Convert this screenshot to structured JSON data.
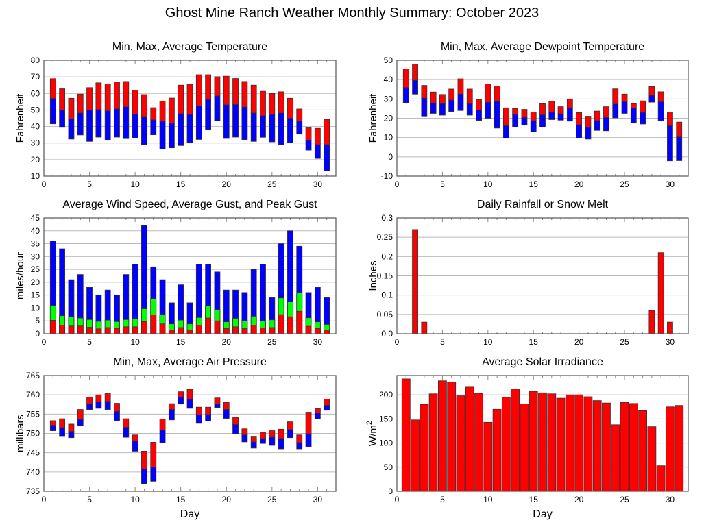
{
  "title": "Ghost Mine Ranch Weather Monthly Summary: October 2023",
  "colors": {
    "red": "#ff0000",
    "blue": "#0000ff",
    "green": "#00ff00",
    "grid": "#bbbbbb",
    "frame": "#555555"
  },
  "chart_data": [
    {
      "id": "temperature",
      "type": "bar",
      "title": "Min, Max, Average Temperature",
      "xlabel": "",
      "ylabel": "Fahrenheit",
      "xlim": [
        0,
        32
      ],
      "ylim": [
        10,
        80
      ],
      "xticks": [
        0,
        5,
        10,
        15,
        20,
        25,
        30
      ],
      "yticks": [
        10,
        20,
        30,
        40,
        50,
        60,
        70,
        80
      ],
      "grid": true,
      "x": [
        1,
        2,
        3,
        4,
        5,
        6,
        7,
        8,
        9,
        10,
        11,
        12,
        13,
        14,
        15,
        16,
        17,
        18,
        19,
        20,
        21,
        22,
        23,
        24,
        25,
        26,
        27,
        28,
        29,
        30,
        31
      ],
      "series": [
        {
          "name": "Max",
          "color": "red",
          "values": [
            68.9,
            62.8,
            57.1,
            59.6,
            63.5,
            66.4,
            65.7,
            66.8,
            67.2,
            62.0,
            59.3,
            51.4,
            55.4,
            57.2,
            65.0,
            65.5,
            71.3,
            71.3,
            70.1,
            70.4,
            69.0,
            67.2,
            65.0,
            61.3,
            60.0,
            61.0,
            57.1,
            50.6,
            39.2,
            38.9,
            44.3
          ]
        },
        {
          "name": "Average",
          "color": "split",
          "values": [
            56.9,
            49.8,
            44.6,
            48.1,
            49.8,
            50.2,
            49.4,
            50.6,
            51.9,
            47.4,
            45.6,
            44.0,
            43.1,
            41.9,
            47.7,
            47.2,
            52.4,
            56.3,
            58.5,
            53.1,
            53.3,
            51.8,
            48.1,
            46.5,
            47.2,
            48.1,
            45.0,
            43.3,
            31.6,
            29.0,
            29.0
          ]
        },
        {
          "name": "Min",
          "color": "blue",
          "values": [
            41.6,
            39.5,
            32.4,
            34.9,
            31.0,
            33.6,
            31.8,
            33.6,
            32.7,
            33.1,
            29.0,
            35.0,
            26.5,
            27.1,
            28.5,
            30.3,
            32.2,
            38.2,
            43.3,
            32.8,
            33.6,
            32.1,
            31.0,
            33.5,
            30.7,
            29.0,
            30.3,
            35.4,
            25.7,
            20.7,
            13.2
          ]
        }
      ]
    },
    {
      "id": "dewpoint",
      "type": "bar",
      "title": "Min, Max, Average Dewpoint Temperature",
      "xlabel": "",
      "ylabel": "Fahrenheit",
      "xlim": [
        0,
        32
      ],
      "ylim": [
        -10,
        50
      ],
      "xticks": [
        0,
        5,
        10,
        15,
        20,
        25,
        30
      ],
      "yticks": [
        -10,
        0,
        10,
        20,
        30,
        40,
        50
      ],
      "grid": true,
      "x": [
        1,
        2,
        3,
        4,
        5,
        6,
        7,
        8,
        9,
        10,
        11,
        12,
        13,
        14,
        15,
        16,
        17,
        18,
        19,
        20,
        21,
        22,
        23,
        24,
        25,
        26,
        27,
        28,
        29,
        30,
        31
      ],
      "series": [
        {
          "name": "Max",
          "color": "red",
          "values": [
            45.5,
            48.0,
            37.0,
            33.6,
            32.3,
            35.1,
            40.4,
            35.1,
            29.6,
            37.7,
            36.7,
            25.4,
            25.0,
            24.6,
            23.2,
            27.5,
            28.8,
            26.0,
            30.0,
            22.9,
            20.7,
            23.7,
            26.0,
            35.2,
            32.5,
            27.5,
            29.0,
            36.4,
            33.7,
            23.2,
            18.0
          ]
        },
        {
          "name": "Average",
          "color": "split",
          "values": [
            35.9,
            39.6,
            30.4,
            27.9,
            27.5,
            29.4,
            32.5,
            27.5,
            24.3,
            28.2,
            28.7,
            16.1,
            21.9,
            20.4,
            18.7,
            21.7,
            23.2,
            22.3,
            25.4,
            16.6,
            15.4,
            18.8,
            20.4,
            27.3,
            28.5,
            25.2,
            22.9,
            31.8,
            28.5,
            16.1,
            10.3
          ]
        },
        {
          "name": "Min",
          "color": "blue",
          "values": [
            28.0,
            32.5,
            20.8,
            22.5,
            21.6,
            23.5,
            24.0,
            21.6,
            18.9,
            20.0,
            14.9,
            9.7,
            15.5,
            16.4,
            12.9,
            15.4,
            19.3,
            19.0,
            18.5,
            9.8,
            9.2,
            13.7,
            13.5,
            20.2,
            22.5,
            17.6,
            17.0,
            28.3,
            18.7,
            -2.1,
            -2.0
          ]
        }
      ]
    },
    {
      "id": "wind",
      "type": "bar",
      "title": "Average Wind Speed, Average Gust, and Peak Gust",
      "xlabel": "",
      "ylabel": "miles/hour",
      "xlim": [
        0,
        32
      ],
      "ylim": [
        0,
        45
      ],
      "xticks": [
        0,
        5,
        10,
        15,
        20,
        25,
        30
      ],
      "yticks": [
        0,
        5,
        10,
        15,
        20,
        25,
        30,
        35,
        40,
        45
      ],
      "grid": true,
      "x": [
        1,
        2,
        3,
        4,
        5,
        6,
        7,
        8,
        9,
        10,
        11,
        12,
        13,
        14,
        15,
        16,
        17,
        18,
        19,
        20,
        21,
        22,
        23,
        24,
        25,
        26,
        27,
        28,
        29,
        30,
        31
      ],
      "series": [
        {
          "name": "Peak Gust",
          "color": "blue",
          "values": [
            36,
            33,
            21,
            23,
            18,
            15,
            17,
            15,
            23,
            27,
            42,
            26,
            21,
            12,
            19,
            12,
            27,
            27,
            24,
            17,
            17,
            16,
            25,
            27,
            14,
            35,
            40,
            34,
            16,
            18,
            14
          ]
        },
        {
          "name": "Average Gust",
          "color": "green",
          "values": [
            11.0,
            7.0,
            6.6,
            6.1,
            5.5,
            4.8,
            5.3,
            4.7,
            5.5,
            5.8,
            9.7,
            13.6,
            7.3,
            3.8,
            5.3,
            3.8,
            6.3,
            10.9,
            9.4,
            4.6,
            6.0,
            4.9,
            6.8,
            4.9,
            5.4,
            13.9,
            12.4,
            15.9,
            6.2,
            4.6,
            3.6
          ]
        },
        {
          "name": "Average Wind Speed",
          "color": "red",
          "values": [
            5.2,
            3.3,
            3.0,
            3.0,
            2.5,
            1.9,
            2.4,
            2.1,
            2.7,
            2.7,
            4.7,
            7.3,
            3.8,
            1.5,
            2.4,
            1.4,
            3.3,
            6.1,
            5.0,
            2.0,
            2.7,
            2.0,
            3.3,
            2.3,
            2.4,
            7.4,
            6.6,
            8.7,
            2.9,
            2.0,
            1.4
          ]
        }
      ]
    },
    {
      "id": "rain",
      "type": "bar",
      "title": "Daily Rainfall or Snow Melt",
      "xlabel": "",
      "ylabel": "Inches",
      "xlim": [
        0,
        32
      ],
      "ylim": [
        0,
        0.3
      ],
      "xticks": [
        0,
        5,
        10,
        15,
        20,
        25,
        30
      ],
      "yticks": [
        "0.0",
        "0.05",
        "0.1",
        "0.15",
        "0.2",
        "0.25",
        "0.3"
      ],
      "grid": true,
      "x": [
        1,
        2,
        3,
        4,
        5,
        6,
        7,
        8,
        9,
        10,
        11,
        12,
        13,
        14,
        15,
        16,
        17,
        18,
        19,
        20,
        21,
        22,
        23,
        24,
        25,
        26,
        27,
        28,
        29,
        30,
        31
      ],
      "values": [
        0,
        0.27,
        0.03,
        0,
        0,
        0,
        0,
        0,
        0,
        0,
        0,
        0,
        0,
        0,
        0,
        0,
        0,
        0,
        0,
        0,
        0,
        0,
        0,
        0,
        0,
        0,
        0,
        0.06,
        0.21,
        0.03,
        0
      ]
    },
    {
      "id": "pressure",
      "type": "bar",
      "title": "Min, Max, Average Air Pressure",
      "xlabel": "Day",
      "ylabel": "millibars",
      "xlim": [
        0,
        32
      ],
      "ylim": [
        735,
        765
      ],
      "xticks": [
        0,
        5,
        10,
        15,
        20,
        25,
        30
      ],
      "yticks": [
        735,
        740,
        745,
        750,
        755,
        760,
        765
      ],
      "grid": true,
      "x": [
        1,
        2,
        3,
        4,
        5,
        6,
        7,
        8,
        9,
        10,
        11,
        12,
        13,
        14,
        15,
        16,
        17,
        18,
        19,
        20,
        21,
        22,
        23,
        24,
        25,
        26,
        27,
        28,
        29,
        30,
        31
      ],
      "series": [
        {
          "name": "Max",
          "color": "red",
          "values": [
            753.3,
            753.8,
            752.4,
            756.2,
            759.4,
            760.0,
            760.3,
            757.8,
            753.8,
            749.6,
            745.4,
            747.7,
            753.7,
            757.7,
            760.8,
            761.4,
            756.8,
            756.8,
            759.2,
            758.0,
            754.2,
            751.2,
            749.1,
            750.3,
            750.7,
            751.1,
            753.0,
            749.6,
            755.5,
            756.4,
            758.9
          ]
        },
        {
          "name": "Average",
          "color": "split",
          "values": [
            752.1,
            751.5,
            750.5,
            753.6,
            757.6,
            758.2,
            758.3,
            755.7,
            751.6,
            748.0,
            740.8,
            741.2,
            750.8,
            756.2,
            759.4,
            758.9,
            754.8,
            754.9,
            757.6,
            756.2,
            752.3,
            749.6,
            747.8,
            748.7,
            749.0,
            748.7,
            751.0,
            747.6,
            749.9,
            755.3,
            757.3
          ]
        },
        {
          "name": "Min",
          "color": "blue",
          "values": [
            750.7,
            749.2,
            748.9,
            752.0,
            756.2,
            756.5,
            756.2,
            753.3,
            749.0,
            745.4,
            737.0,
            737.6,
            747.6,
            753.5,
            757.6,
            756.5,
            752.6,
            753.2,
            756.7,
            753.9,
            749.9,
            747.8,
            746.2,
            747.4,
            746.9,
            746.0,
            748.9,
            746.0,
            746.6,
            753.8,
            756.0
          ]
        }
      ]
    },
    {
      "id": "solar",
      "type": "bar",
      "title": "Average Solar Irradiance",
      "xlabel": "Day",
      "ylabel": "W/m",
      "ylabel_sup": "2",
      "xlim": [
        0,
        32
      ],
      "ylim": [
        0,
        240
      ],
      "xticks": [
        0,
        5,
        10,
        15,
        20,
        25,
        30
      ],
      "yticks": [
        0,
        50,
        100,
        150,
        200
      ],
      "grid": true,
      "x": [
        1,
        2,
        3,
        4,
        5,
        6,
        7,
        8,
        9,
        10,
        11,
        12,
        13,
        14,
        15,
        16,
        17,
        18,
        19,
        20,
        21,
        22,
        23,
        24,
        25,
        26,
        27,
        28,
        29,
        30,
        31
      ],
      "values": [
        233,
        148,
        180,
        202,
        229,
        226,
        198,
        216,
        203,
        143,
        170,
        195,
        212,
        181,
        207,
        204,
        202,
        193,
        200,
        200,
        196,
        188,
        183,
        138,
        184,
        182,
        167,
        134,
        53,
        175,
        178
      ]
    }
  ]
}
